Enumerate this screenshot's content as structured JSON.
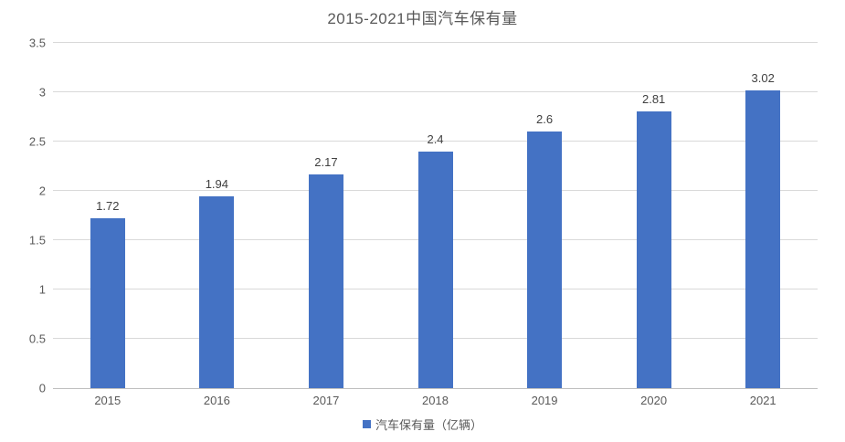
{
  "chart_data": {
    "type": "bar",
    "title": "2015-2021中国汽车保有量",
    "categories": [
      "2015",
      "2016",
      "2017",
      "2018",
      "2019",
      "2020",
      "2021"
    ],
    "series": [
      {
        "name": "汽车保有量（亿辆）",
        "values": [
          1.72,
          1.94,
          2.17,
          2.4,
          2.6,
          2.81,
          3.02
        ],
        "value_labels": [
          "1.72",
          "1.94",
          "2.17",
          "2.4",
          "2.6",
          "2.81",
          "3.02"
        ]
      }
    ],
    "xlabel": "",
    "ylabel": "",
    "ylim": [
      0,
      3.5
    ],
    "ytick_labels": [
      "0",
      "0.5",
      "1",
      "1.5",
      "2",
      "2.5",
      "3",
      "3.5"
    ],
    "grid": "horizontal",
    "legend_position": "bottom",
    "colors": {
      "bar": "#4472C4",
      "title_text": "#595959",
      "axis_text": "#595959",
      "data_label_text": "#404040",
      "gridline": "#D9D9D9"
    }
  }
}
